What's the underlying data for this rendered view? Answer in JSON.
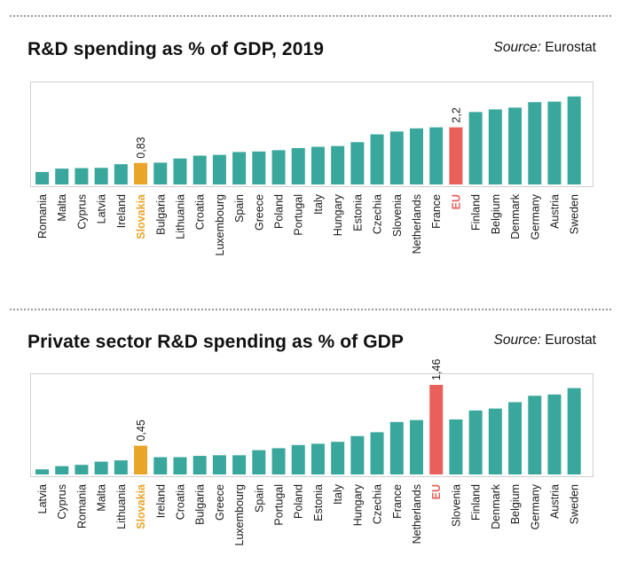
{
  "colors": {
    "default": "#3aa79c",
    "highlight": "#e8a52a",
    "eu": "#e9605b"
  },
  "chart_data": [
    {
      "type": "bar",
      "title": "R&D spending as % of GDP, 2019",
      "source_label": "Source:",
      "source_value": "Eurostat",
      "categories": [
        "Romania",
        "Malta",
        "Cyprus",
        "Latvia",
        "Ireland",
        "Slovakia",
        "Bulgaria",
        "Lithuania",
        "Croatia",
        "Luxembourg",
        "Spain",
        "Greece",
        "Poland",
        "Portugal",
        "Italy",
        "Hungary",
        "Estonia",
        "Czechia",
        "Slovenia",
        "Netherlands",
        "France",
        "EU",
        "Finland",
        "Belgium",
        "Denmark",
        "Germany",
        "Austria",
        "Sweden"
      ],
      "values": [
        0.48,
        0.61,
        0.63,
        0.64,
        0.78,
        0.83,
        0.84,
        1.0,
        1.11,
        1.14,
        1.25,
        1.27,
        1.32,
        1.4,
        1.45,
        1.48,
        1.63,
        1.93,
        2.04,
        2.16,
        2.2,
        2.2,
        2.79,
        2.89,
        2.96,
        3.17,
        3.19,
        3.39
      ],
      "highlight": "Slovakia",
      "reference": "EU",
      "data_labels": [
        {
          "category": "Slovakia",
          "text": "0,83"
        },
        {
          "category": "EU",
          "text": "2,2"
        }
      ],
      "ylim": [
        0,
        3.45
      ],
      "grid": false
    },
    {
      "type": "bar",
      "title": "Private sector R&D spending as % of GDP",
      "source_label": "Source:",
      "source_value": "Eurostat",
      "categories": [
        "Latvia",
        "Cyprus",
        "Romania",
        "Malta",
        "Lithuania",
        "Slovakia",
        "Ireland",
        "Croatia",
        "Bulgaria",
        "Greece",
        "Luxembourg",
        "Spain",
        "Portugal",
        "Poland",
        "Estonia",
        "Italy",
        "Hungary",
        "Czechia",
        "France",
        "Netherlands",
        "EU",
        "Slovenia",
        "Finland",
        "Denmark",
        "Belgium",
        "Germany",
        "Austria",
        "Sweden"
      ],
      "values": [
        0.08,
        0.13,
        0.15,
        0.2,
        0.22,
        0.45,
        0.27,
        0.27,
        0.29,
        0.3,
        0.3,
        0.38,
        0.41,
        0.46,
        0.48,
        0.51,
        0.6,
        0.66,
        0.82,
        0.85,
        1.46,
        0.86,
        1.0,
        1.03,
        1.13,
        1.23,
        1.25,
        1.35
      ],
      "highlight": "Slovakia",
      "reference": "EU",
      "data_labels": [
        {
          "category": "Slovakia",
          "text": "0,45"
        },
        {
          "category": "EU",
          "text": "1,46"
        }
      ],
      "ylim": [
        0,
        1.4
      ],
      "grid": false
    }
  ]
}
